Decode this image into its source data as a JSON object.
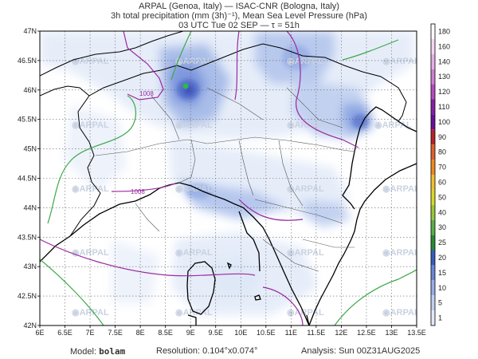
{
  "header": {
    "line1": "ARPAL (Genoa, Italy)   —   ISAC-CNR (Bologna, Italy)",
    "line2": "3h total precipitation (mm (3h)⁻¹), Mean Sea Level Pressure (hPa)",
    "line3": "03 UTC Tue 02 SEP   —   τ = 51h"
  },
  "map": {
    "lon_labels": [
      "6E",
      "6.5E",
      "7E",
      "7.5E",
      "8E",
      "8.5E",
      "9E",
      "9.5E",
      "10E",
      "10.5E",
      "11E",
      "11.5E",
      "12E",
      "12.5E",
      "13E",
      "13.5E"
    ],
    "lat_labels": [
      "47N",
      "46.5N",
      "46N",
      "45.5N",
      "45N",
      "44.5N",
      "44N",
      "43.5N",
      "43N",
      "42.5N",
      "42N"
    ],
    "isobar_labels": [
      "1008",
      "1008"
    ],
    "watermark": "ARPAL"
  },
  "colorbar": {
    "levels": [
      "180",
      "160",
      "140",
      "130",
      "120",
      "110",
      "100",
      "90",
      "80",
      "70",
      "60",
      "50",
      "40",
      "30",
      "25",
      "20",
      "15",
      "10",
      "5",
      "1"
    ],
    "colors": [
      "#ffffff",
      "#f4d6f4",
      "#e6b0e6",
      "#d080d0",
      "#b84cc0",
      "#8a1fa8",
      "#6a0ea0",
      "#b8222a",
      "#e0602a",
      "#f08a20",
      "#f0c030",
      "#d8d828",
      "#9ac83a",
      "#58b048",
      "#2a8a3a",
      "#3a5cc0",
      "#6a86d8",
      "#98aee6",
      "#c2d0f0",
      "#e2eaf8"
    ]
  },
  "footer": {
    "model_label": "Model:",
    "model_value": "bolam",
    "resolution": "Resolution:  0.104°x0.074°",
    "analysis": "Analysis:  Sun  00Z31AUG2025"
  }
}
